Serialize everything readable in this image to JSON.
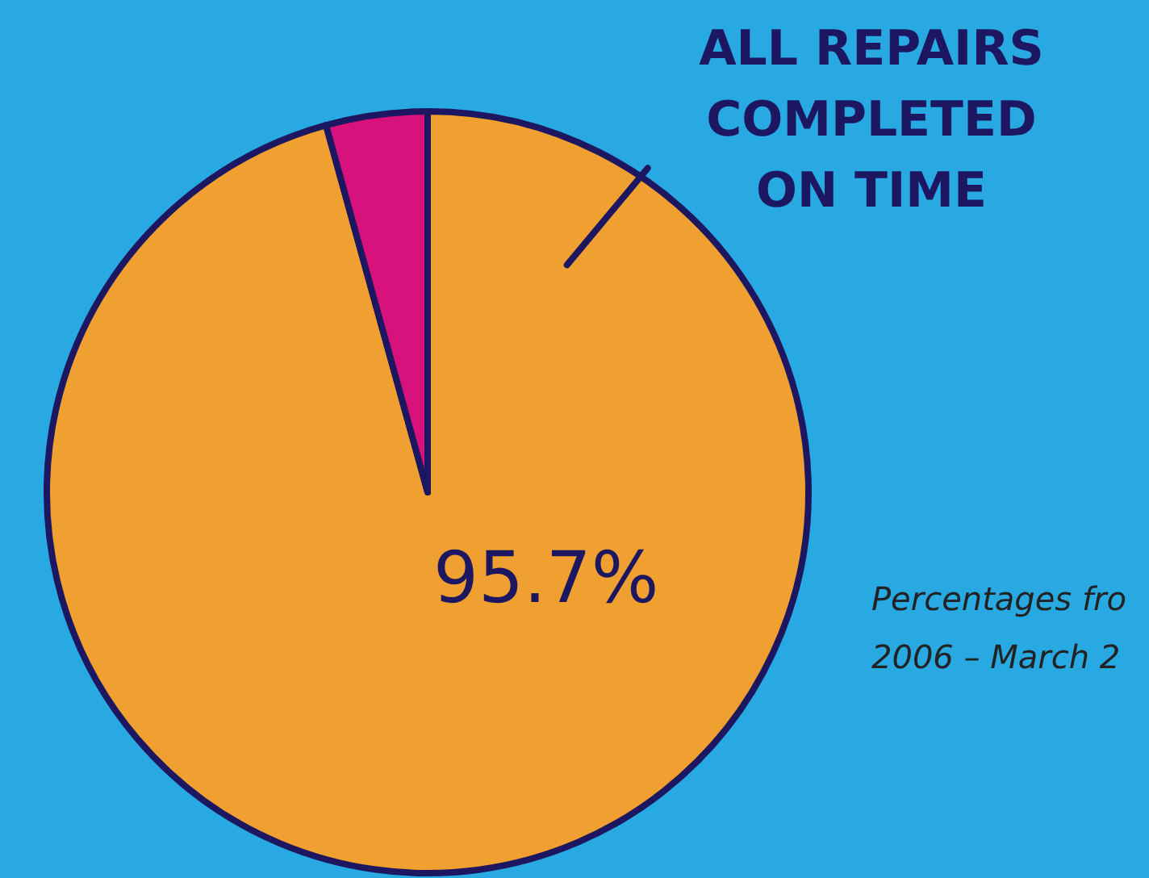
{
  "chart_data": {
    "type": "pie",
    "categories": [
      "ALL REPAIRS COMPLETED ON TIME",
      null
    ],
    "values": [
      95.7,
      4.3
    ],
    "colors": [
      "#f0a030",
      "#d8127c"
    ],
    "value_labels": [
      "95.7%",
      null
    ],
    "annotations": [
      "Percentages fro",
      "2006 – March 2"
    ]
  }
}
